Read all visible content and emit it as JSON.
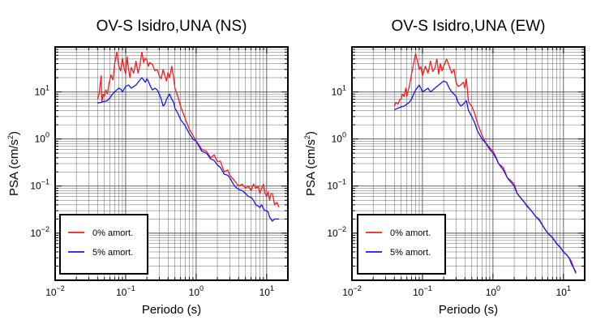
{
  "chart_data": [
    {
      "type": "line",
      "title": "OV-S Isidro,UNA (NS)",
      "xlabel": "Periodo (s)",
      "ylabel_main": "PSA (cm/s",
      "ylabel_sup": "2",
      "ylabel_end": ")",
      "x_scale": "log",
      "y_scale": "log",
      "xlim": [
        0.01,
        20
      ],
      "ylim": [
        0.001,
        90
      ],
      "grid": true,
      "legend_position": "bottom-left",
      "x_ticks": [
        {
          "value": 0.01,
          "base": "10",
          "exp": "−2"
        },
        {
          "value": 0.1,
          "base": "10",
          "exp": "−1"
        },
        {
          "value": 1,
          "base": "10",
          "exp": "0"
        },
        {
          "value": 10,
          "base": "10",
          "exp": "1"
        }
      ],
      "y_ticks": [
        {
          "value": 0.01,
          "base": "10",
          "exp": "−2"
        },
        {
          "value": 0.1,
          "base": "10",
          "exp": "−1"
        },
        {
          "value": 1,
          "base": "10",
          "exp": "0"
        },
        {
          "value": 10,
          "base": "10",
          "exp": "1"
        }
      ],
      "series": [
        {
          "name": "0% amort.",
          "color": "#ff1a1a",
          "x": [
            0.04,
            0.042,
            0.045,
            0.046,
            0.048,
            0.05,
            0.052,
            0.055,
            0.058,
            0.062,
            0.066,
            0.07,
            0.075,
            0.08,
            0.085,
            0.09,
            0.095,
            0.1,
            0.105,
            0.11,
            0.115,
            0.12,
            0.13,
            0.14,
            0.15,
            0.16,
            0.17,
            0.18,
            0.19,
            0.2,
            0.21,
            0.22,
            0.24,
            0.26,
            0.28,
            0.3,
            0.32,
            0.34,
            0.36,
            0.38,
            0.4,
            0.42,
            0.45,
            0.48,
            0.5,
            0.55,
            0.6,
            0.7,
            0.8,
            0.9,
            1.0,
            1.1,
            1.2,
            1.4,
            1.6,
            1.8,
            2.0,
            2.2,
            2.5,
            2.8,
            3.0,
            3.5,
            4.0,
            4.5,
            5.0,
            5.5,
            6.0,
            6.5,
            7.0,
            7.5,
            8.0,
            8.5,
            9.0,
            9.5,
            10.0,
            10.5,
            11.0,
            11.5,
            12.0,
            13.0,
            14.0,
            15.0
          ],
          "y": [
            7,
            9,
            22,
            6,
            9,
            8,
            11,
            9,
            15,
            23,
            18,
            40,
            70,
            35,
            28,
            52,
            32,
            24,
            55,
            30,
            20,
            33,
            25,
            45,
            25,
            38,
            70,
            42,
            52,
            48,
            35,
            42,
            38,
            28,
            30,
            22,
            19,
            30,
            22,
            17,
            26,
            20,
            35,
            20,
            12,
            8,
            5,
            2.7,
            1.6,
            1.2,
            0.9,
            0.75,
            0.6,
            0.55,
            0.4,
            0.46,
            0.33,
            0.34,
            0.2,
            0.22,
            0.17,
            0.13,
            0.1,
            0.11,
            0.09,
            0.1,
            0.08,
            0.11,
            0.09,
            0.1,
            0.07,
            0.09,
            0.11,
            0.07,
            0.06,
            0.075,
            0.05,
            0.07,
            0.07,
            0.04,
            0.045,
            0.035
          ]
        },
        {
          "name": "5% amort.",
          "color": "#1414ff",
          "x": [
            0.04,
            0.045,
            0.05,
            0.055,
            0.06,
            0.065,
            0.07,
            0.075,
            0.08,
            0.085,
            0.09,
            0.1,
            0.11,
            0.12,
            0.13,
            0.14,
            0.15,
            0.16,
            0.17,
            0.18,
            0.19,
            0.2,
            0.21,
            0.22,
            0.24,
            0.26,
            0.28,
            0.3,
            0.32,
            0.34,
            0.36,
            0.38,
            0.4,
            0.42,
            0.45,
            0.48,
            0.5,
            0.55,
            0.6,
            0.7,
            0.8,
            0.9,
            1.0,
            1.1,
            1.2,
            1.4,
            1.6,
            1.8,
            2.0,
            2.2,
            2.5,
            2.8,
            3.0,
            3.5,
            4.0,
            4.5,
            5.0,
            5.5,
            6.0,
            6.5,
            7.0,
            7.5,
            8.0,
            8.5,
            9.0,
            9.5,
            10.0,
            10.5,
            11.0,
            11.5,
            12.0,
            13.0,
            14.0,
            15.0
          ],
          "y": [
            5.8,
            6,
            6.3,
            6.5,
            7.5,
            9,
            10,
            11,
            12,
            11.5,
            10,
            13,
            14,
            12,
            13,
            14,
            16,
            18,
            20,
            18,
            16,
            19,
            17,
            14,
            11,
            12,
            11,
            9,
            7,
            5,
            5.5,
            7,
            8,
            9,
            7,
            6,
            4.5,
            3.5,
            2.6,
            1.9,
            1.3,
            1.0,
            0.9,
            0.7,
            0.55,
            0.5,
            0.38,
            0.35,
            0.28,
            0.25,
            0.18,
            0.17,
            0.15,
            0.1,
            0.085,
            0.08,
            0.07,
            0.06,
            0.058,
            0.05,
            0.04,
            0.038,
            0.035,
            0.04,
            0.033,
            0.03,
            0.03,
            0.028,
            0.022,
            0.02,
            0.018,
            0.02,
            0.02,
            0.02
          ]
        }
      ]
    },
    {
      "type": "line",
      "title": "OV-S Isidro,UNA (EW)",
      "xlabel": "Periodo (s)",
      "ylabel_main": "PSA (cm/s",
      "ylabel_sup": "2",
      "ylabel_end": ")",
      "x_scale": "log",
      "y_scale": "log",
      "xlim": [
        0.01,
        20
      ],
      "ylim": [
        0.001,
        90
      ],
      "grid": true,
      "legend_position": "bottom-left",
      "x_ticks": [
        {
          "value": 0.01,
          "base": "10",
          "exp": "−2"
        },
        {
          "value": 0.1,
          "base": "10",
          "exp": "−1"
        },
        {
          "value": 1,
          "base": "10",
          "exp": "0"
        },
        {
          "value": 10,
          "base": "10",
          "exp": "1"
        }
      ],
      "y_ticks": [
        {
          "value": 0.01,
          "base": "10",
          "exp": "−2"
        },
        {
          "value": 0.1,
          "base": "10",
          "exp": "−1"
        },
        {
          "value": 1,
          "base": "10",
          "exp": "0"
        },
        {
          "value": 10,
          "base": "10",
          "exp": "1"
        }
      ],
      "series": [
        {
          "name": "0% amort.",
          "color": "#ff1a1a",
          "x": [
            0.04,
            0.042,
            0.045,
            0.048,
            0.05,
            0.052,
            0.055,
            0.058,
            0.06,
            0.062,
            0.065,
            0.07,
            0.075,
            0.08,
            0.085,
            0.09,
            0.095,
            0.1,
            0.11,
            0.12,
            0.13,
            0.14,
            0.15,
            0.16,
            0.17,
            0.18,
            0.19,
            0.2,
            0.22,
            0.24,
            0.26,
            0.28,
            0.3,
            0.32,
            0.35,
            0.38,
            0.4,
            0.42,
            0.45,
            0.5,
            0.55,
            0.6,
            0.7,
            0.8,
            0.9,
            1.0,
            1.1,
            1.2,
            1.4,
            1.6,
            1.8,
            2.0,
            2.2,
            2.5,
            2.8,
            3.0,
            3.5,
            4.0,
            4.5,
            5.0,
            5.5,
            6.0,
            7.0,
            8.0,
            9.0,
            10.0,
            11.0,
            12.0,
            13.0,
            14.0,
            15.0
          ],
          "y": [
            5,
            6,
            5.5,
            7,
            7,
            9,
            8,
            12,
            8,
            10,
            13,
            24,
            40,
            65,
            45,
            30,
            34,
            22,
            35,
            25,
            45,
            27,
            32,
            50,
            24,
            40,
            28,
            35,
            50,
            35,
            25,
            30,
            16,
            13,
            14,
            16,
            12,
            19,
            6,
            5,
            3.5,
            2.2,
            1.2,
            0.8,
            0.65,
            0.55,
            0.42,
            0.3,
            0.25,
            0.15,
            0.13,
            0.11,
            0.07,
            0.055,
            0.045,
            0.04,
            0.03,
            0.023,
            0.02,
            0.015,
            0.012,
            0.01,
            0.008,
            0.006,
            0.005,
            0.004,
            0.0035,
            0.003,
            0.0025,
            0.0018,
            0.0015
          ]
        },
        {
          "name": "5% amort.",
          "color": "#1414ff",
          "x": [
            0.04,
            0.045,
            0.05,
            0.055,
            0.06,
            0.065,
            0.07,
            0.075,
            0.08,
            0.09,
            0.1,
            0.11,
            0.12,
            0.13,
            0.14,
            0.15,
            0.16,
            0.17,
            0.18,
            0.19,
            0.2,
            0.22,
            0.24,
            0.26,
            0.28,
            0.3,
            0.32,
            0.35,
            0.38,
            0.4,
            0.42,
            0.45,
            0.5,
            0.55,
            0.6,
            0.7,
            0.8,
            0.9,
            1.0,
            1.1,
            1.2,
            1.4,
            1.6,
            1.8,
            2.0,
            2.2,
            2.5,
            2.8,
            3.0,
            3.5,
            4.0,
            4.5,
            5.0,
            5.5,
            6.0,
            7.0,
            8.0,
            9.0,
            10.0,
            11.0,
            12.0,
            13.0,
            14.0,
            15.0
          ],
          "y": [
            4.2,
            4.5,
            4.8,
            5,
            5.5,
            6,
            7,
            9,
            11,
            14,
            10,
            11,
            12,
            10,
            11,
            12,
            13,
            14,
            15,
            16,
            17,
            16,
            12,
            10,
            9,
            8,
            6,
            5,
            5.5,
            6,
            6.5,
            4,
            3,
            2.2,
            1.5,
            1.0,
            0.8,
            0.6,
            0.5,
            0.4,
            0.3,
            0.22,
            0.15,
            0.12,
            0.1,
            0.07,
            0.055,
            0.045,
            0.038,
            0.03,
            0.023,
            0.019,
            0.015,
            0.012,
            0.01,
            0.008,
            0.006,
            0.005,
            0.004,
            0.0035,
            0.003,
            0.0022,
            0.0018,
            0.0014
          ]
        }
      ]
    }
  ]
}
